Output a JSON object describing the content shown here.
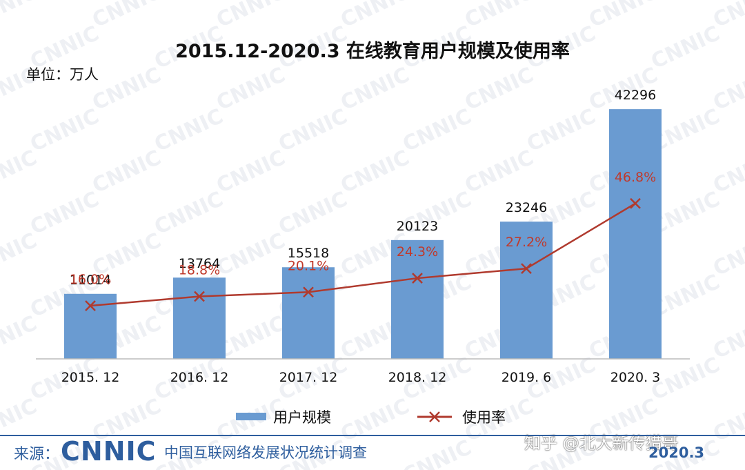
{
  "header": {
    "title": "2015.12-2020.3 在线教育用户规模及使用率",
    "unit": "单位：万人"
  },
  "chart_data": {
    "type": "bar",
    "title": "2015.12-2020.3 在线教育用户规模及使用率",
    "categories": [
      "2015. 12",
      "2016. 12",
      "2017. 12",
      "2018. 12",
      "2019. 6",
      "2020. 3"
    ],
    "series": [
      {
        "name": "用户规模",
        "type": "bar",
        "values": [
          11014,
          13764,
          15518,
          20123,
          23246,
          42296
        ],
        "color": "#6A9BD1"
      },
      {
        "name": "使用率",
        "type": "line",
        "values": [
          16.0,
          18.8,
          20.1,
          24.3,
          27.2,
          46.8
        ],
        "value_labels": [
          "16.0%",
          "18.8%",
          "20.1%",
          "24.3%",
          "27.2%",
          "46.8%"
        ],
        "color": "#B03A2E"
      }
    ],
    "ylim": [
      0,
      45000
    ],
    "y2lim": [
      0,
      80
    ],
    "grid": false,
    "legend": "bottom-center"
  },
  "legend": {
    "bar_label": "用户规模",
    "line_label": "使用率"
  },
  "footer": {
    "source_label": "来源：",
    "brand": "CNNIC",
    "survey_name": "中国互联网络发展状况统计调查",
    "survey_date": "2020.3"
  },
  "credit": "知乎 @北大新传猎哥",
  "watermark_text": "CNNIC",
  "colors": {
    "bar": "#6A9BD1",
    "line": "#B03A2E",
    "rate_text": "#C0392B",
    "brand": "#2E5E9E"
  }
}
